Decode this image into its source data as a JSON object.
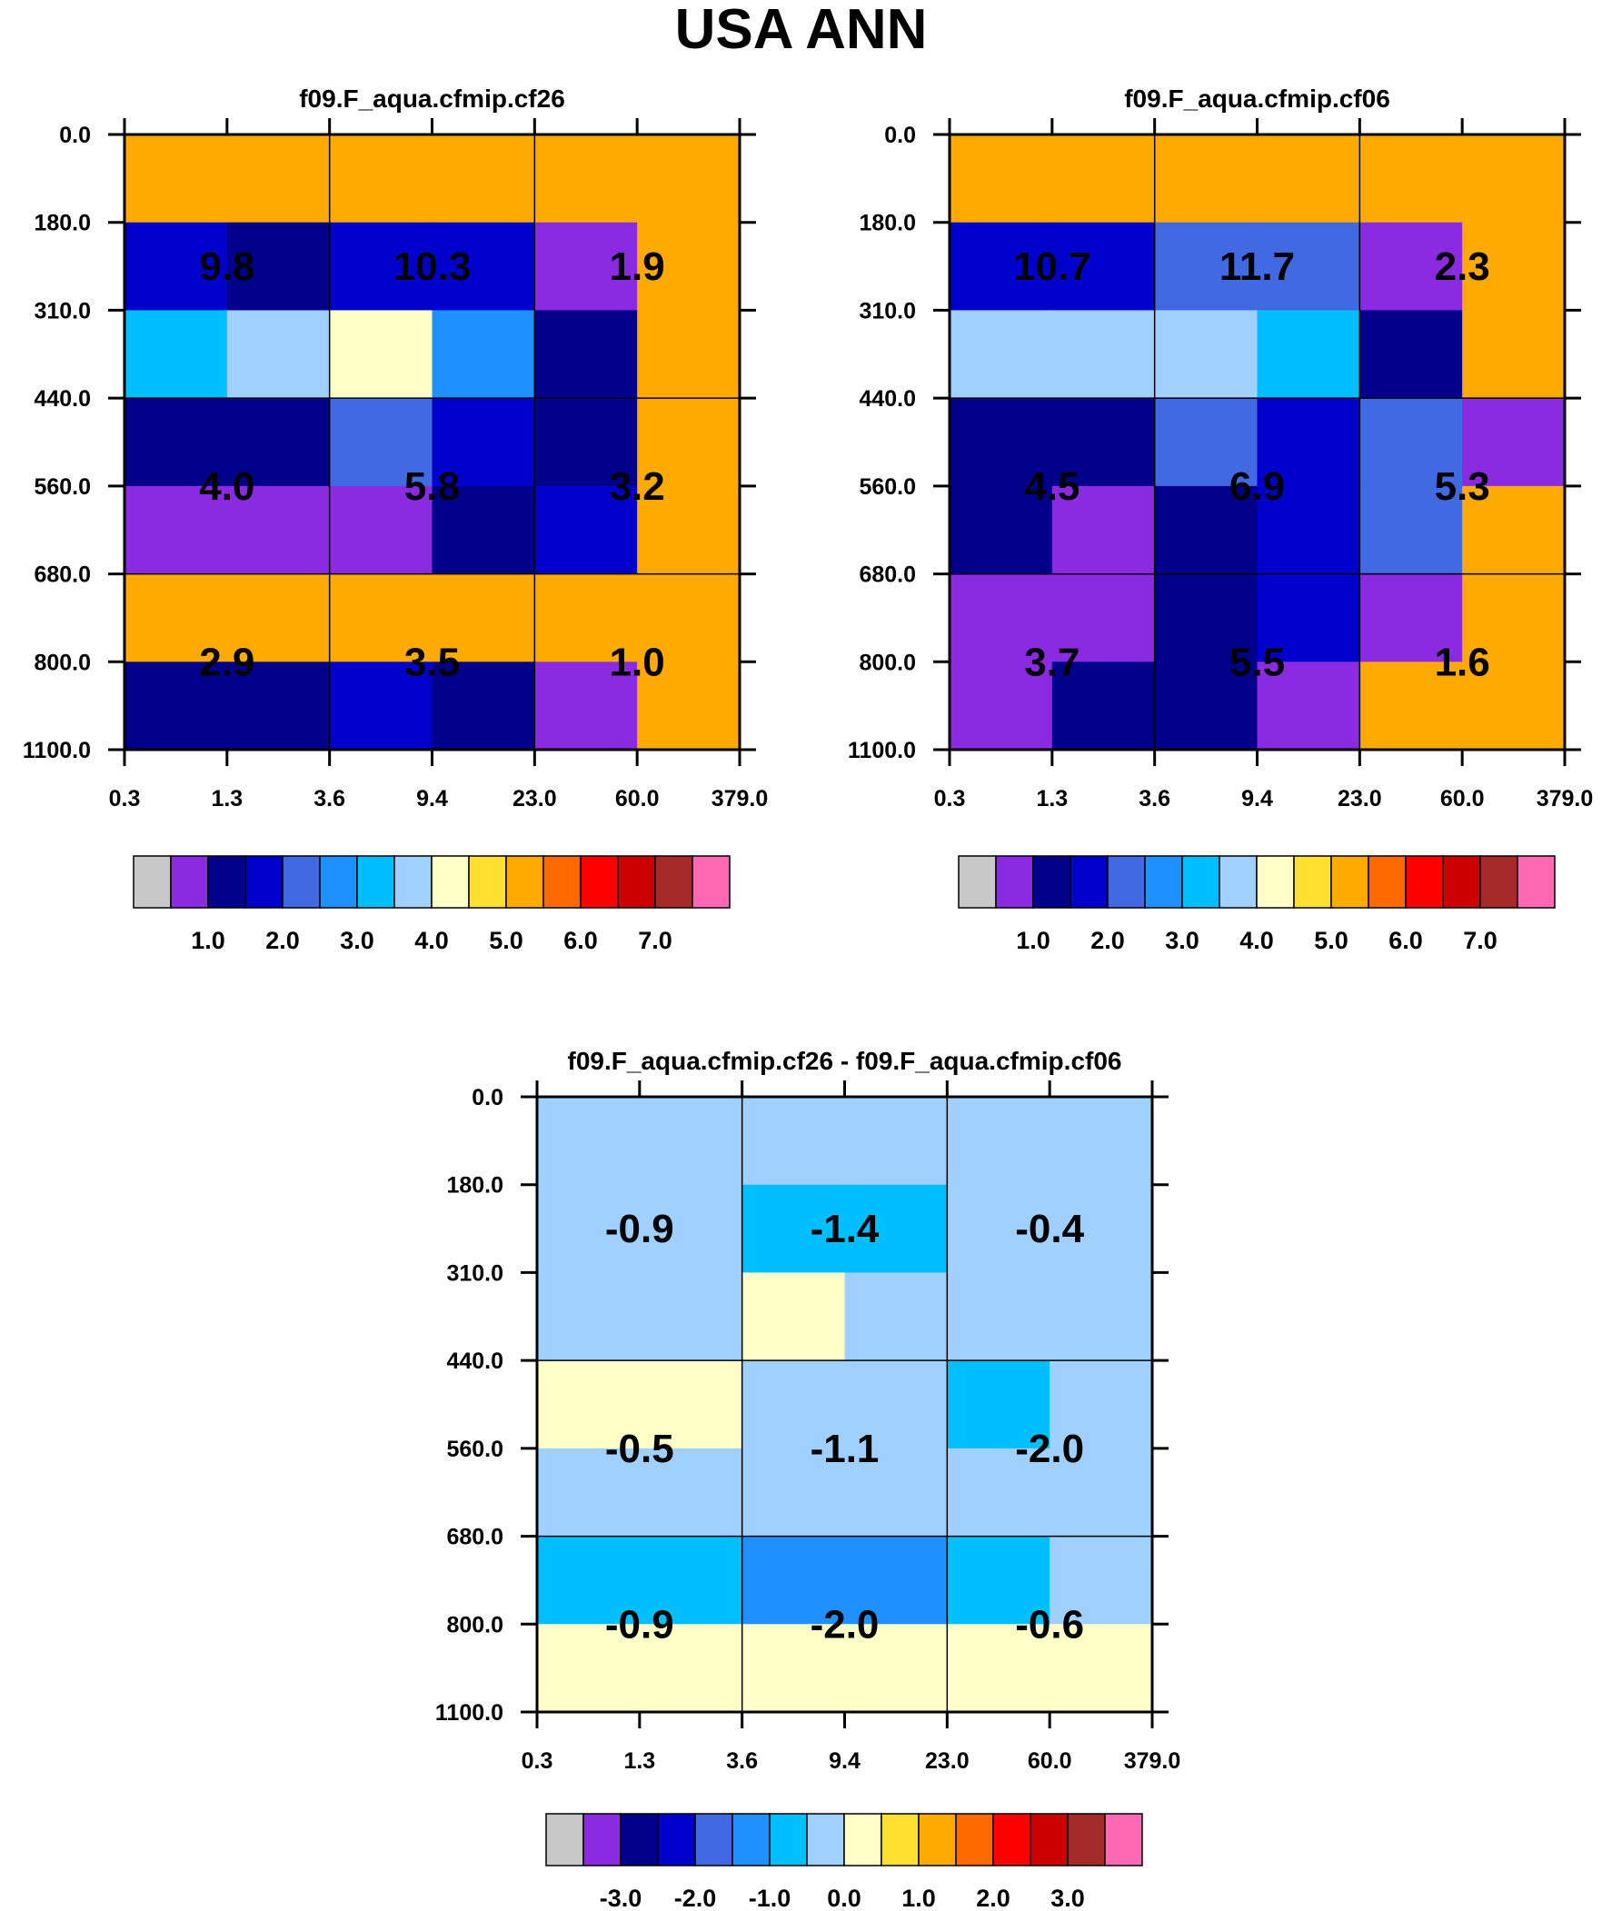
{
  "main_title": "USA ANN",
  "chart_data": [
    {
      "type": "heatmap",
      "title": "f09.F_aqua.cfmip.cf26",
      "xlabel": "",
      "ylabel": "",
      "x_ticks": [
        "0.3",
        "1.3",
        "3.6",
        "9.4",
        "23.0",
        "60.0",
        "379.0"
      ],
      "y_ticks": [
        "0.0",
        "180.0",
        "310.0",
        "440.0",
        "560.0",
        "680.0",
        "800.0",
        "1100.0"
      ],
      "cells": [
        [
          10,
          10,
          10,
          10,
          10,
          10
        ],
        [
          3,
          2,
          3,
          3,
          1,
          10
        ],
        [
          6,
          7,
          8,
          5,
          2,
          10
        ],
        [
          2,
          2,
          4,
          3,
          2,
          10
        ],
        [
          1,
          1,
          1,
          2,
          3,
          10
        ],
        [
          10,
          10,
          10,
          10,
          10,
          10
        ],
        [
          2,
          2,
          3,
          2,
          1,
          10
        ]
      ],
      "annotations": [
        {
          "row_center": "180.0–440.0",
          "col_center": "0.3–3.6",
          "text": "9.8"
        },
        {
          "row_center": "180.0–440.0",
          "col_center": "3.6–23.0",
          "text": "10.3"
        },
        {
          "row_center": "180.0–440.0",
          "col_center": "23.0–379.0",
          "text": "1.9"
        },
        {
          "row_center": "440.0–680.0",
          "col_center": "0.3–3.6",
          "text": "4.0"
        },
        {
          "row_center": "440.0–680.0",
          "col_center": "3.6–23.0",
          "text": "5.8"
        },
        {
          "row_center": "440.0–680.0",
          "col_center": "23.0–379.0",
          "text": "3.2"
        },
        {
          "row_center": "680.0–1100.0",
          "col_center": "0.3–3.6",
          "text": "2.9"
        },
        {
          "row_center": "680.0–1100.0",
          "col_center": "3.6–23.0",
          "text": "3.5"
        },
        {
          "row_center": "680.0–1100.0",
          "col_center": "23.0–379.0",
          "text": "1.0"
        }
      ],
      "colorbar": {
        "colors": [
          "#c8c8c8",
          "#8a2be2",
          "#00008b",
          "#0000cd",
          "#4169e1",
          "#1e90ff",
          "#00bfff",
          "#a0d0ff",
          "#ffffc8",
          "#ffe030",
          "#ffaa00",
          "#ff6a00",
          "#ff0000",
          "#cd0000",
          "#a52a2a",
          "#ff69b4"
        ],
        "labels": [
          "1.0",
          "2.0",
          "3.0",
          "4.0",
          "5.0",
          "6.0",
          "7.0"
        ]
      }
    },
    {
      "type": "heatmap",
      "title": "f09.F_aqua.cfmip.cf06",
      "xlabel": "",
      "ylabel": "",
      "x_ticks": [
        "0.3",
        "1.3",
        "3.6",
        "9.4",
        "23.0",
        "60.0",
        "379.0"
      ],
      "y_ticks": [
        "0.0",
        "180.0",
        "310.0",
        "440.0",
        "560.0",
        "680.0",
        "800.0",
        "1100.0"
      ],
      "cells": [
        [
          10,
          10,
          10,
          10,
          10,
          10
        ],
        [
          3,
          3,
          4,
          4,
          1,
          10
        ],
        [
          7,
          7,
          7,
          6,
          2,
          10
        ],
        [
          2,
          2,
          4,
          3,
          4,
          1
        ],
        [
          2,
          1,
          2,
          3,
          4,
          10
        ],
        [
          1,
          1,
          2,
          3,
          1,
          10
        ],
        [
          1,
          2,
          2,
          1,
          10,
          10
        ]
      ],
      "annotations": [
        {
          "row_center": "180.0–440.0",
          "col_center": "0.3–3.6",
          "text": "10.7"
        },
        {
          "row_center": "180.0–440.0",
          "col_center": "3.6–23.0",
          "text": "11.7"
        },
        {
          "row_center": "180.0–440.0",
          "col_center": "23.0–379.0",
          "text": "2.3"
        },
        {
          "row_center": "440.0–680.0",
          "col_center": "0.3–3.6",
          "text": "4.5"
        },
        {
          "row_center": "440.0–680.0",
          "col_center": "3.6–23.0",
          "text": "6.9"
        },
        {
          "row_center": "440.0–680.0",
          "col_center": "23.0–379.0",
          "text": "5.3"
        },
        {
          "row_center": "680.0–1100.0",
          "col_center": "0.3–3.6",
          "text": "3.7"
        },
        {
          "row_center": "680.0–1100.0",
          "col_center": "3.6–23.0",
          "text": "5.5"
        },
        {
          "row_center": "680.0–1100.0",
          "col_center": "23.0–379.0",
          "text": "1.6"
        }
      ],
      "colorbar": {
        "colors": [
          "#c8c8c8",
          "#8a2be2",
          "#00008b",
          "#0000cd",
          "#4169e1",
          "#1e90ff",
          "#00bfff",
          "#a0d0ff",
          "#ffffc8",
          "#ffe030",
          "#ffaa00",
          "#ff6a00",
          "#ff0000",
          "#cd0000",
          "#a52a2a",
          "#ff69b4"
        ],
        "labels": [
          "1.0",
          "2.0",
          "3.0",
          "4.0",
          "5.0",
          "6.0",
          "7.0"
        ]
      }
    },
    {
      "type": "heatmap",
      "title": "f09.F_aqua.cfmip.cf26 - f09.F_aqua.cfmip.cf06",
      "xlabel": "",
      "ylabel": "",
      "x_ticks": [
        "0.3",
        "1.3",
        "3.6",
        "9.4",
        "23.0",
        "60.0",
        "379.0"
      ],
      "y_ticks": [
        "0.0",
        "180.0",
        "310.0",
        "440.0",
        "560.0",
        "680.0",
        "800.0",
        "1100.0"
      ],
      "cells": [
        [
          7,
          7,
          7,
          7,
          7,
          7
        ],
        [
          7,
          7,
          6,
          6,
          7,
          7
        ],
        [
          7,
          7,
          8,
          7,
          7,
          7
        ],
        [
          8,
          8,
          7,
          7,
          6,
          7
        ],
        [
          7,
          7,
          7,
          7,
          7,
          7
        ],
        [
          6,
          6,
          5,
          5,
          6,
          7
        ],
        [
          8,
          8,
          8,
          8,
          8,
          8
        ]
      ],
      "annotations": [
        {
          "row_center": "180.0–440.0",
          "col_center": "0.3–3.6",
          "text": "-0.9"
        },
        {
          "row_center": "180.0–440.0",
          "col_center": "3.6–23.0",
          "text": "-1.4"
        },
        {
          "row_center": "180.0–440.0",
          "col_center": "23.0–379.0",
          "text": "-0.4"
        },
        {
          "row_center": "440.0–680.0",
          "col_center": "0.3–3.6",
          "text": "-0.5"
        },
        {
          "row_center": "440.0–680.0",
          "col_center": "3.6–23.0",
          "text": "-1.1"
        },
        {
          "row_center": "440.0–680.0",
          "col_center": "23.0–379.0",
          "text": "-2.0"
        },
        {
          "row_center": "680.0–1100.0",
          "col_center": "0.3–3.6",
          "text": "-0.9"
        },
        {
          "row_center": "680.0–1100.0",
          "col_center": "3.6–23.0",
          "text": "-2.0"
        },
        {
          "row_center": "680.0–1100.0",
          "col_center": "23.0–379.0",
          "text": "-0.6"
        }
      ],
      "colorbar": {
        "colors": [
          "#c8c8c8",
          "#8a2be2",
          "#00008b",
          "#0000cd",
          "#4169e1",
          "#1e90ff",
          "#00bfff",
          "#a0d0ff",
          "#ffffc8",
          "#ffe030",
          "#ffaa00",
          "#ff6a00",
          "#ff0000",
          "#cd0000",
          "#a52a2a",
          "#ff69b4"
        ],
        "labels": [
          "-3.0",
          "-2.0",
          "-1.0",
          "0.0",
          "1.0",
          "2.0",
          "3.0"
        ]
      }
    }
  ]
}
